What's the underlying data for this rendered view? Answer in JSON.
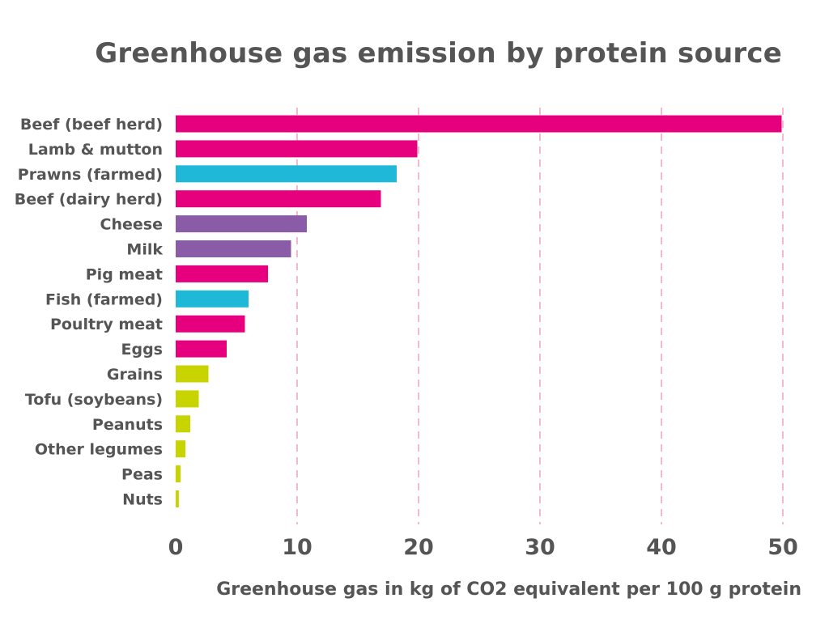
{
  "chart_data": {
    "type": "bar",
    "orientation": "horizontal",
    "title": "Greenhouse gas emission by protein source",
    "xlabel": "Greenhouse gas in kg of CO2 equivalent per 100 g protein",
    "ylabel": "",
    "xlim": [
      0,
      50
    ],
    "xticks": [
      0,
      10,
      20,
      30,
      40,
      50
    ],
    "grid": "vertical dashed",
    "categories": [
      "Beef (beef herd)",
      "Lamb & mutton",
      "Prawns (farmed)",
      "Beef (dairy herd)",
      "Cheese",
      "Milk",
      "Pig meat",
      "Fish (farmed)",
      "Poultry meat",
      "Eggs",
      "Grains",
      "Tofu (soybeans)",
      "Peanuts",
      "Other legumes",
      "Peas",
      "Nuts"
    ],
    "values": [
      49.9,
      19.9,
      18.2,
      16.9,
      10.8,
      9.5,
      7.6,
      6.0,
      5.7,
      4.2,
      2.7,
      1.9,
      1.2,
      0.8,
      0.4,
      0.26
    ],
    "bar_colors": [
      "#e6007e",
      "#e6007e",
      "#1fb8d8",
      "#e6007e",
      "#8a5ca8",
      "#8a5ca8",
      "#e6007e",
      "#1fb8d8",
      "#e6007e",
      "#e6007e",
      "#c8d400",
      "#c8d400",
      "#c8d400",
      "#c8d400",
      "#c8d400",
      "#c8d400"
    ],
    "grid_color": "#f4a6c8",
    "text_color": "#555555"
  }
}
